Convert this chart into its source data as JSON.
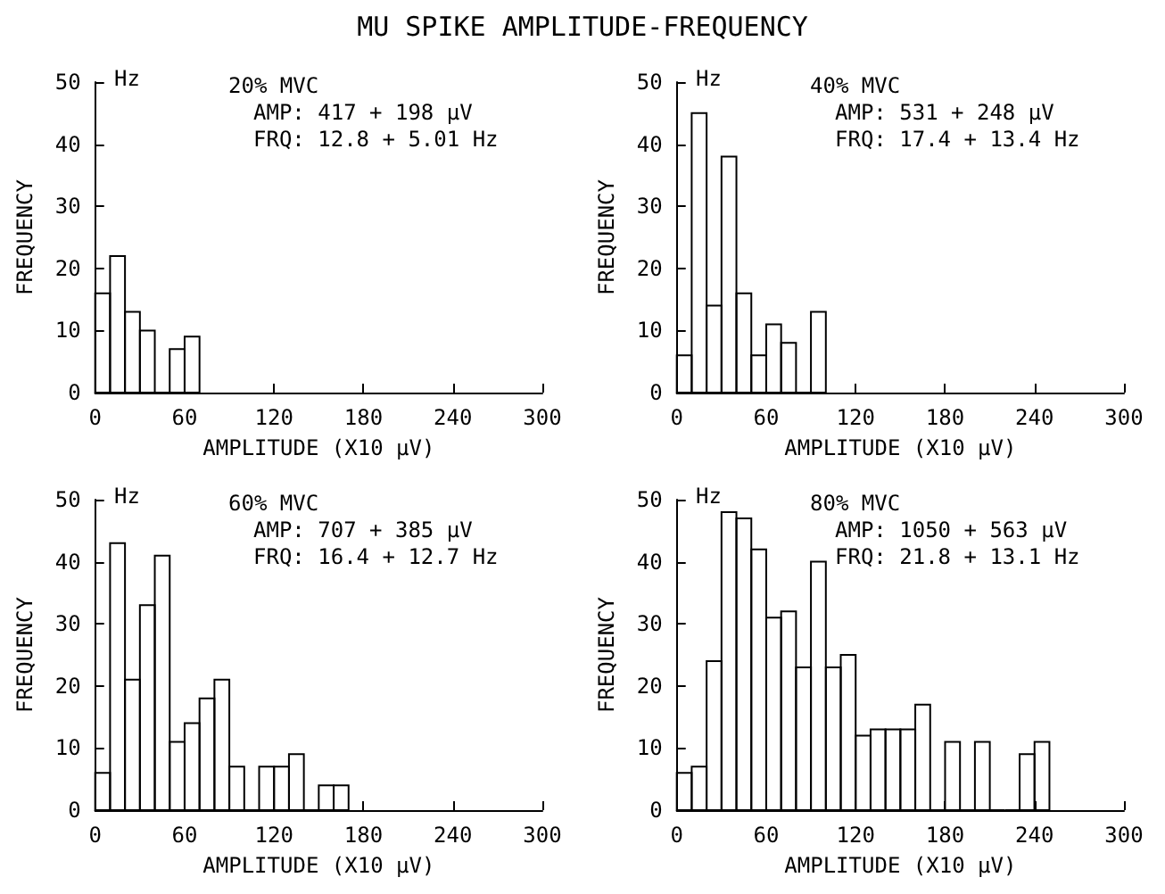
{
  "chart_data": [
    {
      "type": "histogram",
      "title": "MU SPIKE AMPLITUDE-FREQUENCY",
      "xlabel": "AMPLITUDE (X10 µV)",
      "ylabel": "FREQUENCY",
      "annotations": [
        "Hz",
        "20% MVC",
        "AMP: 417 + 198 µV",
        "FRQ: 12.8 + 5.01 Hz"
      ],
      "bins": [
        0,
        10,
        20,
        30,
        40,
        50,
        60,
        70
      ],
      "values": [
        16,
        22,
        13,
        10,
        0,
        7,
        9
      ],
      "color": "#000000",
      "xlim": [
        0,
        300
      ],
      "xticks": [
        0,
        60,
        120,
        180,
        240,
        300
      ],
      "ylim": [
        0,
        50
      ],
      "yticks": [
        0,
        10,
        20,
        30,
        40,
        50
      ],
      "grid": false
    },
    {
      "type": "histogram",
      "xlabel": "AMPLITUDE (X10 µV)",
      "ylabel": "FREQUENCY",
      "annotations": [
        "Hz",
        "40% MVC",
        "AMP: 531 + 248 µV",
        "FRQ: 17.4 + 13.4 Hz"
      ],
      "bins": [
        0,
        10,
        20,
        30,
        40,
        50,
        60,
        70,
        80,
        90,
        100
      ],
      "values": [
        6,
        45,
        14,
        38,
        16,
        6,
        11,
        8,
        0,
        13
      ],
      "color": "#000000",
      "xlim": [
        0,
        300
      ],
      "xticks": [
        0,
        60,
        120,
        180,
        240,
        300
      ],
      "ylim": [
        0,
        50
      ],
      "yticks": [
        0,
        10,
        20,
        30,
        40,
        50
      ],
      "grid": false
    },
    {
      "type": "histogram",
      "xlabel": "AMPLITUDE (X10 µV)",
      "ylabel": "FREQUENCY",
      "annotations": [
        "Hz",
        "60% MVC",
        "AMP: 707 + 385 µV",
        "FRQ: 16.4 + 12.7 Hz"
      ],
      "bins": [
        0,
        10,
        20,
        30,
        40,
        50,
        60,
        70,
        80,
        90,
        100,
        110,
        120,
        130,
        140,
        150,
        160,
        170
      ],
      "values": [
        6,
        43,
        21,
        33,
        41,
        11,
        14,
        18,
        21,
        7,
        0,
        7,
        7,
        9,
        0,
        4,
        4
      ],
      "color": "#000000",
      "xlim": [
        0,
        300
      ],
      "xticks": [
        0,
        60,
        120,
        180,
        240,
        300
      ],
      "ylim": [
        0,
        50
      ],
      "yticks": [
        0,
        10,
        20,
        30,
        40,
        50
      ],
      "grid": false
    },
    {
      "type": "histogram",
      "xlabel": "AMPLITUDE (X10 µV)",
      "ylabel": "FREQUENCY",
      "annotations": [
        "Hz",
        "80% MVC",
        "AMP: 1050 + 563 µV",
        "FRQ: 21.8 + 13.1 Hz"
      ],
      "bins": [
        0,
        10,
        20,
        30,
        40,
        50,
        60,
        70,
        80,
        90,
        100,
        110,
        120,
        130,
        140,
        150,
        160,
        170,
        180,
        190,
        200,
        210,
        220,
        230,
        240,
        250
      ],
      "values": [
        6,
        7,
        24,
        48,
        47,
        42,
        31,
        32,
        23,
        40,
        23,
        25,
        12,
        13,
        13,
        13,
        17,
        0,
        11,
        0,
        11,
        0,
        0,
        9,
        11
      ],
      "color": "#000000",
      "xlim": [
        0,
        300
      ],
      "xticks": [
        0,
        60,
        120,
        180,
        240,
        300
      ],
      "ylim": [
        0,
        50
      ],
      "yticks": [
        0,
        10,
        20,
        30,
        40,
        50
      ],
      "grid": false
    }
  ]
}
